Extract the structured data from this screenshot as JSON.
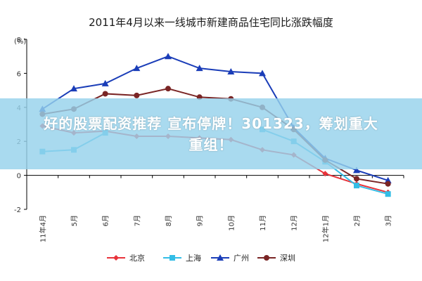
{
  "banner": {
    "line1": "好的股票配资推荐 宣布停牌！301323，筹划重大",
    "line2": "重组！"
  },
  "chart_data": {
    "type": "line",
    "title": "2011年4月以来一线城市新建商品住宅同比涨跌幅度",
    "ylabel": "(%)",
    "xlabel": "",
    "ylim": [
      -2,
      8
    ],
    "yticks": [
      "-2",
      "0",
      "2",
      "4",
      "6",
      "8"
    ],
    "yticks_values": [
      -2,
      0,
      2,
      4,
      6,
      8
    ],
    "grid": false,
    "legend_position": "bottom",
    "categories": [
      "11年4月",
      "5月",
      "6月",
      "7月",
      "8月",
      "9月",
      "10月",
      "11月",
      "12月",
      "12年1月",
      "2月",
      "3月"
    ],
    "series": [
      {
        "name": "北京",
        "color": "#e8333a",
        "marker": "diamond",
        "values": [
          2.9,
          2.5,
          2.6,
          2.3,
          2.3,
          2.2,
          2.1,
          1.5,
          1.2,
          0.1,
          -0.5,
          -1.0
        ]
      },
      {
        "name": "上海",
        "color": "#33bde6",
        "marker": "square",
        "values": [
          1.4,
          1.5,
          2.5,
          null,
          null,
          null,
          null,
          2.7,
          2.0,
          0.8,
          -0.6,
          -1.1
        ]
      },
      {
        "name": "广州",
        "color": "#1a3db8",
        "marker": "triangle",
        "values": [
          3.9,
          5.1,
          5.4,
          6.3,
          7.0,
          6.3,
          6.1,
          6.0,
          2.8,
          1.0,
          0.3,
          -0.3
        ]
      },
      {
        "name": "深圳",
        "color": "#7a2525",
        "marker": "circle",
        "values": [
          3.6,
          3.9,
          4.8,
          4.7,
          5.1,
          4.6,
          4.5,
          4.0,
          2.7,
          0.9,
          -0.2,
          -0.5
        ]
      }
    ]
  }
}
